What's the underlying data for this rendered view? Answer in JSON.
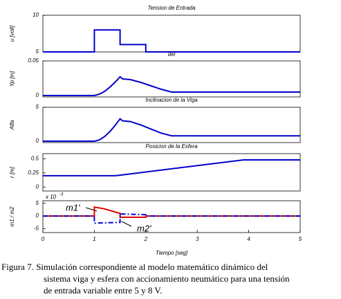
{
  "chart_data": [
    {
      "type": "line",
      "title": "Tension de  Entrada",
      "ylabel": "u [volt]",
      "xlim": [
        0,
        5
      ],
      "ylim": [
        5,
        10
      ],
      "yticks": [
        5,
        10
      ],
      "series": [
        {
          "color": "#0000cc",
          "x": [
            0,
            1,
            1,
            1.5,
            1.5,
            2,
            2,
            5
          ],
          "values": [
            5,
            5,
            8,
            8,
            6,
            6,
            5,
            5
          ]
        }
      ]
    },
    {
      "type": "line",
      "title": "del",
      "ylabel": "Yp [m]",
      "xlim": [
        0,
        5
      ],
      "ylim": [
        -0.002,
        0.05
      ],
      "yticks": [
        0,
        0.05
      ],
      "series": [
        {
          "color": "#0000cc",
          "x": [
            0,
            1,
            1.1,
            1.2,
            1.3,
            1.4,
            1.5,
            1.55,
            1.7,
            1.9,
            2.1,
            2.3,
            2.5,
            5
          ],
          "values": [
            0,
            0,
            0.002,
            0.006,
            0.012,
            0.019,
            0.027,
            0.024,
            0.023,
            0.019,
            0.014,
            0.009,
            0.005,
            0.005
          ]
        }
      ]
    },
    {
      "type": "line",
      "title": "Inclinacion de la  Viga",
      "ylabel": "Alfa",
      "xlim": [
        0,
        5
      ],
      "ylim": [
        -0.2,
        5
      ],
      "yticks": [
        0,
        5
      ],
      "series": [
        {
          "color": "#0000cc",
          "x": [
            0,
            1,
            1.1,
            1.2,
            1.3,
            1.4,
            1.5,
            1.55,
            1.7,
            1.9,
            2.1,
            2.3,
            2.5,
            5
          ],
          "values": [
            0,
            0,
            0.2,
            0.7,
            1.4,
            2.3,
            3.3,
            3.0,
            2.9,
            2.4,
            1.8,
            1.2,
            0.8,
            0.8
          ]
        }
      ]
    },
    {
      "type": "line",
      "title": "Posicion de la Esfera",
      "ylabel": "r [m]",
      "xlim": [
        0,
        5
      ],
      "ylim": [
        -0.07,
        0.59
      ],
      "yticks": [
        0,
        0.25,
        0.5
      ],
      "series": [
        {
          "color": "#0000cc",
          "x": [
            0,
            1.4,
            1.5,
            3.9,
            5
          ],
          "values": [
            0.2,
            0.2,
            0.21,
            0.48,
            0.48
          ]
        }
      ]
    },
    {
      "type": "line",
      "ylabel": "m1 / m2",
      "offset_label": "x 10",
      "offset_exponent": "-3",
      "xlabel": "Tiempo [seg]",
      "xlim": [
        0,
        5
      ],
      "xticks": [
        0,
        1,
        2,
        3,
        4,
        5
      ],
      "ylim": [
        -6.5,
        6
      ],
      "yticks": [
        -5,
        0,
        5
      ],
      "series": [
        {
          "name": "m1'",
          "color": "#dd0000",
          "x": [
            0,
            1,
            1,
            1.2,
            1.5,
            1.5,
            2,
            2,
            5
          ],
          "values": [
            0,
            0,
            3.5,
            2.8,
            1,
            -0.5,
            -0.5,
            0,
            0
          ]
        },
        {
          "name": "m2'",
          "color": "#0000cc",
          "dash": true,
          "x": [
            0,
            1,
            1,
            1.5,
            1.5,
            2,
            2,
            5
          ],
          "values": [
            0,
            0,
            -2.8,
            -2.5,
            0.8,
            0.5,
            0,
            0
          ]
        }
      ]
    }
  ],
  "caption": [
    "Figura 7. Simulación correspondiente al modelo matemático dinámico del",
    "sistema viga y esfera con accionamiento neumático para una tensión",
    "de entrada variable entre 5 y 8 V."
  ]
}
